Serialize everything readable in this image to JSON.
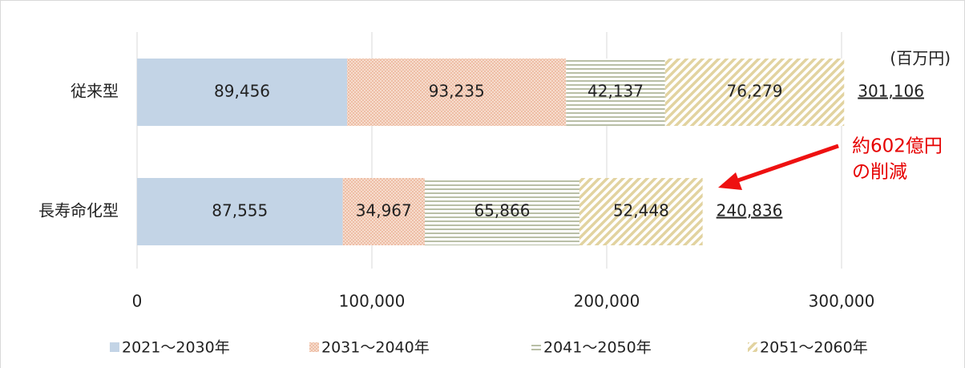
{
  "chart_data": {
    "type": "stacked_barh",
    "unit_label": "(百万円)",
    "categories": [
      "従来型",
      "長寿命化型"
    ],
    "series": [
      {
        "name": "2021～2030年",
        "color": "#c3d4e6",
        "pattern": "solid",
        "values": [
          89456,
          87555
        ],
        "value_labels": [
          "89,456",
          "87,555"
        ]
      },
      {
        "name": "2031～2040年",
        "color": "#e8a98a",
        "pattern": "dots",
        "values": [
          93235,
          34967
        ],
        "value_labels": [
          "93,235",
          "34,967"
        ]
      },
      {
        "name": "2041～2050年",
        "color": "#b9bfa6",
        "pattern": "horizontal",
        "values": [
          42137,
          65866
        ],
        "value_labels": [
          "42,137",
          "65,866"
        ]
      },
      {
        "name": "2051～2060年",
        "color": "#e2d3a0",
        "pattern": "diagonal",
        "values": [
          76279,
          52448
        ],
        "value_labels": [
          "76,279",
          "52,448"
        ]
      }
    ],
    "totals": [
      301106,
      240836
    ],
    "total_labels": [
      "301,106",
      "240,836"
    ],
    "annotation": [
      "約602億円",
      "の削減"
    ],
    "xlim": [
      0,
      300000
    ],
    "xticks": [
      0,
      {
        "value": 100000,
        "label": "100,000"
      },
      {
        "value": 200000,
        "label": "200,000"
      },
      {
        "value": 300000,
        "label": "300,000"
      }
    ],
    "grid": true
  }
}
